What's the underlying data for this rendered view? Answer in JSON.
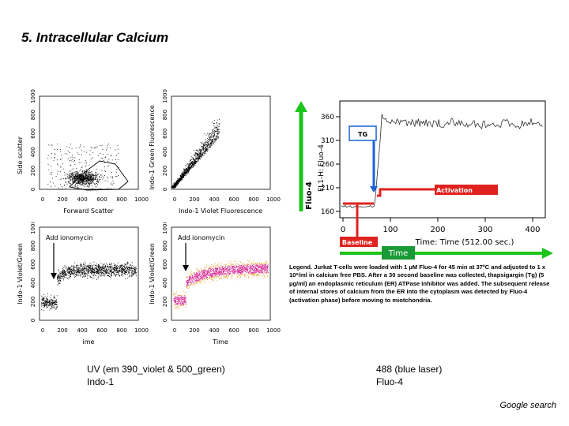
{
  "slide": {
    "title": "5. Intracellular Calcium",
    "credit": "Google search"
  },
  "panels": {
    "top_left": {
      "ylabel": "Side scatter",
      "xlabel": "Forward Scatter",
      "yticks": [
        "0",
        "200",
        "400",
        "600",
        "800",
        "1000"
      ],
      "xticks": [
        "0",
        "200",
        "400",
        "600",
        "800",
        "1000"
      ]
    },
    "top_right": {
      "ylabel": "Indo-1 Green Fluorescence",
      "xlabel": "Indo-1 Violet Fluorescence",
      "yticks": [
        "0",
        "200",
        "400",
        "600",
        "800",
        "1000"
      ],
      "xticks": [
        "0",
        "200",
        "400",
        "600",
        "800",
        "1000"
      ]
    },
    "bottom_left": {
      "ylabel": "Indo-1 Violet/Green",
      "xlabel": "ime",
      "annotation": "Add ionomycin",
      "yticks": [
        "0",
        "200",
        "400",
        "600",
        "800",
        "1000"
      ],
      "xticks": [
        "0",
        "200",
        "400",
        "600",
        "800",
        "1000"
      ]
    },
    "bottom_right": {
      "ylabel": "Indo-1 Violet/Green",
      "xlabel": "Time",
      "annotation": "Add ionomycin",
      "yticks": [
        "0",
        "200",
        "400",
        "600",
        "800",
        "1000"
      ],
      "xticks": [
        "0",
        "200",
        "400",
        "600",
        "800",
        "1000"
      ]
    }
  },
  "fluo4_chart": {
    "ylabel": "FL1-H: Fluo-4",
    "y_axis_arrow_label": "Fluo-4",
    "xlabel": "Time: Time (512.00 sec.)",
    "x_axis_arrow_label": "Time",
    "yticks": [
      "160",
      "210",
      "260",
      "310",
      "360"
    ],
    "xticks": [
      "0",
      "100",
      "200",
      "300",
      "400"
    ],
    "labels": {
      "tg": "TG",
      "activation": "Activation",
      "baseline": "Baseline"
    },
    "colors": {
      "green_arrow": "#1cc41c",
      "blue_marker": "#1a63d6",
      "red_marker": "#e0221e",
      "trace": "#333333"
    }
  },
  "legend_text": "Legend. Jurkat T-cells were loaded with 1 µM Fluo-4 for 45 min  at 37ºC and adjusted to 1 x 10⁶/ml in calcium free PBS. After a 30 second baseline was collected, thapsigargin (Tg) (5 µg/ml) an endoplasmic reticulum (ER) ATPase inhibitor was added. The subsequent release of internal stores of calcium from the ER into the cytoplasm was detected by Fluo-4 (activation phase) before moving to miotchondria.",
  "captions": {
    "uv_line1": "UV (em 390_violet & 500_green)",
    "uv_line2": "Indo-1",
    "blue_line1": "488 (blue laser)",
    "blue_line2": "Fluo-4"
  }
}
